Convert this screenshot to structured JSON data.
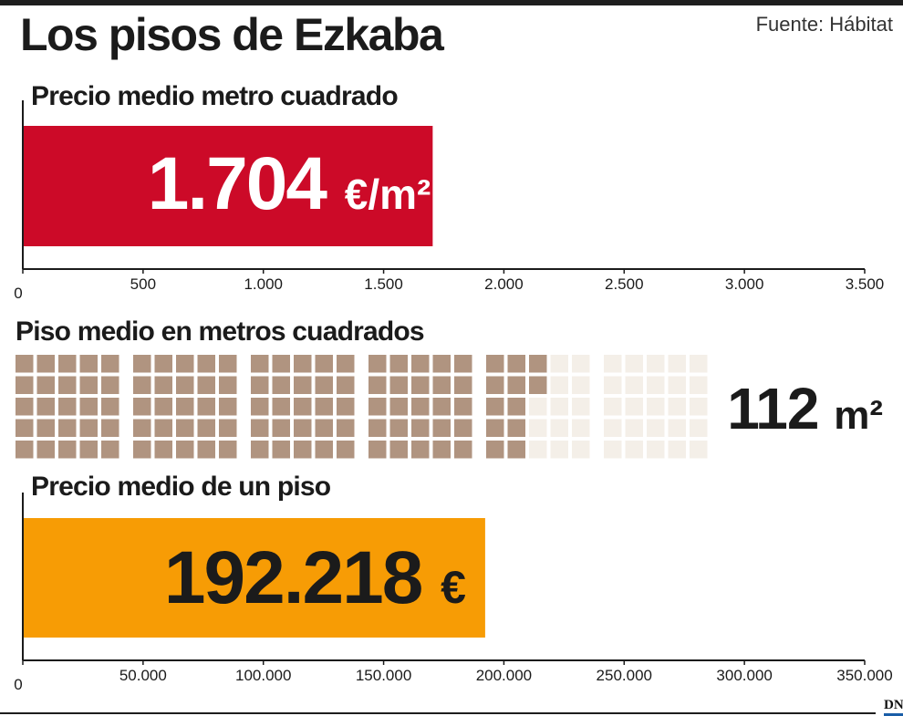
{
  "title": "Los pisos de Ezkaba",
  "source": "Fuente: Hábitat",
  "colors": {
    "bar1": "#cc0a28",
    "bar3": "#f79c05",
    "square_filled": "#b09480",
    "square_empty": "#f4efe8",
    "text": "#1b1b1b",
    "brand_accent": "#1a5ea8"
  },
  "brand": "DN",
  "chart_data": [
    {
      "type": "bar",
      "title": "Precio medio metro cuadrado",
      "orientation": "horizontal",
      "values": [
        1704
      ],
      "value_label": "1.704",
      "unit_label": "€/m²",
      "xlim": [
        0,
        3500
      ],
      "ticks": [
        "0",
        "500",
        "1.000",
        "1.500",
        "2.000",
        "2.500",
        "3.000",
        "3.500"
      ],
      "grid": false,
      "color": "#cc0a28"
    },
    {
      "type": "unit-grid",
      "title": "Piso medio en metros cuadrados",
      "total_units": 150,
      "filled_units": 112,
      "value_label": "112 m²",
      "color": "#b09480"
    },
    {
      "type": "bar",
      "title": "Precio medio de un piso",
      "orientation": "horizontal",
      "values": [
        192218
      ],
      "value_label": "192.218 €",
      "xlim": [
        0,
        350000
      ],
      "ticks": [
        "0",
        "50.000",
        "100.000",
        "150.000",
        "200.000",
        "250.000",
        "300.000",
        "350.000"
      ],
      "grid": false,
      "color": "#f79c05"
    }
  ]
}
